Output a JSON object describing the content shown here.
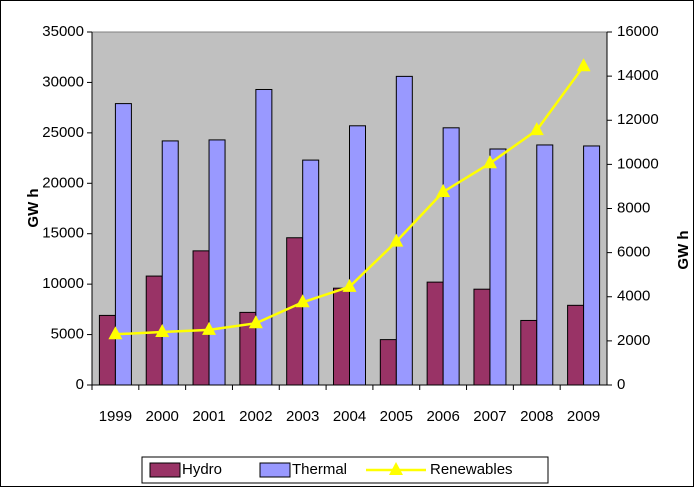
{
  "chart_data": {
    "type": "bar",
    "categories": [
      "1999",
      "2000",
      "2001",
      "2002",
      "2003",
      "2004",
      "2005",
      "2006",
      "2007",
      "2008",
      "2009"
    ],
    "y_label": "GW h",
    "y2_label": "GW h",
    "series": [
      {
        "name": "Hydro",
        "type": "bar",
        "color": "#993366",
        "values": [
          6900,
          10800,
          13300,
          7200,
          14600,
          9600,
          4500,
          10200,
          9500,
          6400,
          7900
        ]
      },
      {
        "name": "Thermal",
        "type": "bar",
        "color": "#9999ff",
        "values": [
          27900,
          24200,
          24300,
          29300,
          22300,
          25700,
          30600,
          25500,
          23400,
          23800,
          23700
        ]
      },
      {
        "name": "Renewables",
        "type": "line",
        "axis": "y2",
        "color": "#ffff00",
        "values": [
          2300,
          2400,
          2500,
          2800,
          3750,
          4450,
          6500,
          8750,
          10050,
          11550,
          14450
        ]
      }
    ],
    "ylim": [
      0,
      35000
    ],
    "yticks": [
      0,
      5000,
      10000,
      15000,
      20000,
      25000,
      30000,
      35000
    ],
    "y2lim": [
      0,
      16000
    ],
    "y2ticks": [
      0,
      2000,
      4000,
      6000,
      8000,
      10000,
      12000,
      14000,
      16000
    ],
    "grid": false,
    "plot_background": "#c0c0c0",
    "legend_position": "bottom"
  }
}
